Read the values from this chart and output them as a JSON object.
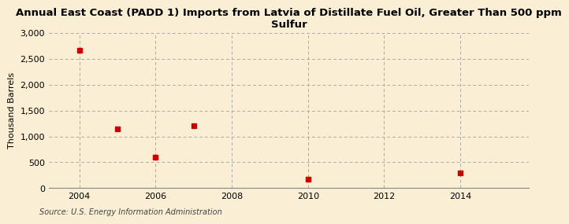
{
  "title": "Annual East Coast (PADD 1) Imports from Latvia of Distillate Fuel Oil, Greater Than 500 ppm\nSulfur",
  "ylabel": "Thousand Barrels",
  "source": "Source: U.S. Energy Information Administration",
  "background_color": "#faefd4",
  "plot_bg_color": "#faefd4",
  "data_x": [
    2004,
    2005,
    2006,
    2007,
    2010,
    2014
  ],
  "data_y": [
    2660,
    1150,
    600,
    1200,
    175,
    290
  ],
  "marker_color": "#cc0000",
  "xlim": [
    2003.2,
    2015.8
  ],
  "ylim": [
    0,
    3000
  ],
  "xticks": [
    2004,
    2006,
    2008,
    2010,
    2012,
    2014
  ],
  "yticks": [
    0,
    500,
    1000,
    1500,
    2000,
    2500,
    3000
  ],
  "grid_color": "#aaaaaa",
  "title_fontsize": 9.5,
  "axis_label_fontsize": 8,
  "tick_fontsize": 8,
  "source_fontsize": 7
}
